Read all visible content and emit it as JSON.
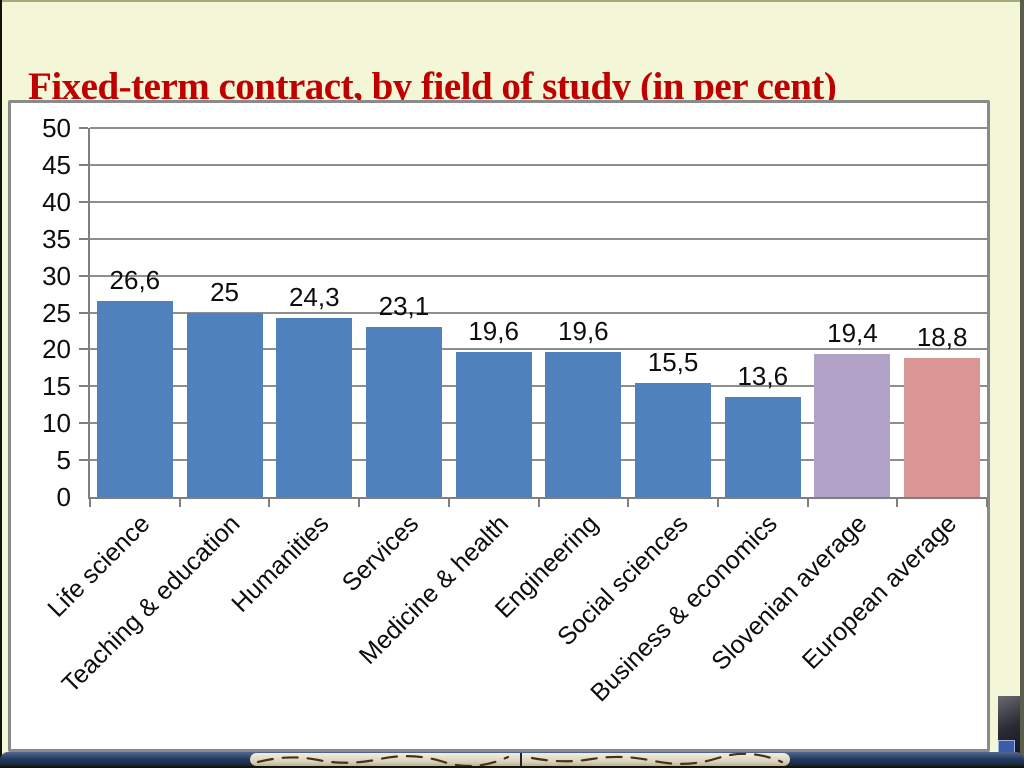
{
  "title": "Fixed-term contract, by field of study (in per cent)",
  "colors": {
    "background": "#f4f6d8",
    "title_text": "#c00000",
    "panel_border": "#8a8a8a",
    "gridline": "#8e8e8e",
    "axis": "#7f7f7f",
    "bar_default": "#4f81bd",
    "bar_slovenian": "#b3a2c7",
    "bar_european": "#d99694",
    "bottom_bar": "#24395c",
    "deco_band": "#d6d0ba"
  },
  "chart_data": {
    "type": "bar",
    "title": "",
    "xlabel": "",
    "ylabel": "",
    "categories": [
      "Life science",
      "Teaching & education",
      "Humanities",
      "Services",
      "Medicine & health",
      "Engineering",
      "Social sciences",
      "Business & economics",
      "Slovenian average",
      "European average"
    ],
    "values": [
      26.6,
      25,
      24.3,
      23.1,
      19.6,
      19.6,
      15.5,
      13.6,
      19.4,
      18.8
    ],
    "value_labels": [
      "26,6",
      "25",
      "24,3",
      "23,1",
      "19,6",
      "19,6",
      "15,5",
      "13,6",
      "19,4",
      "18,8"
    ],
    "bar_colors": [
      "#4f81bd",
      "#4f81bd",
      "#4f81bd",
      "#4f81bd",
      "#4f81bd",
      "#4f81bd",
      "#4f81bd",
      "#4f81bd",
      "#b3a2c7",
      "#d99694"
    ],
    "ylim": [
      0,
      50
    ],
    "ytick_step": 5,
    "ytick_labels": [
      "0",
      "5",
      "10",
      "15",
      "20",
      "25",
      "30",
      "35",
      "40",
      "45",
      "50"
    ],
    "decimal_separator": ",",
    "grid": true,
    "legend": false
  }
}
